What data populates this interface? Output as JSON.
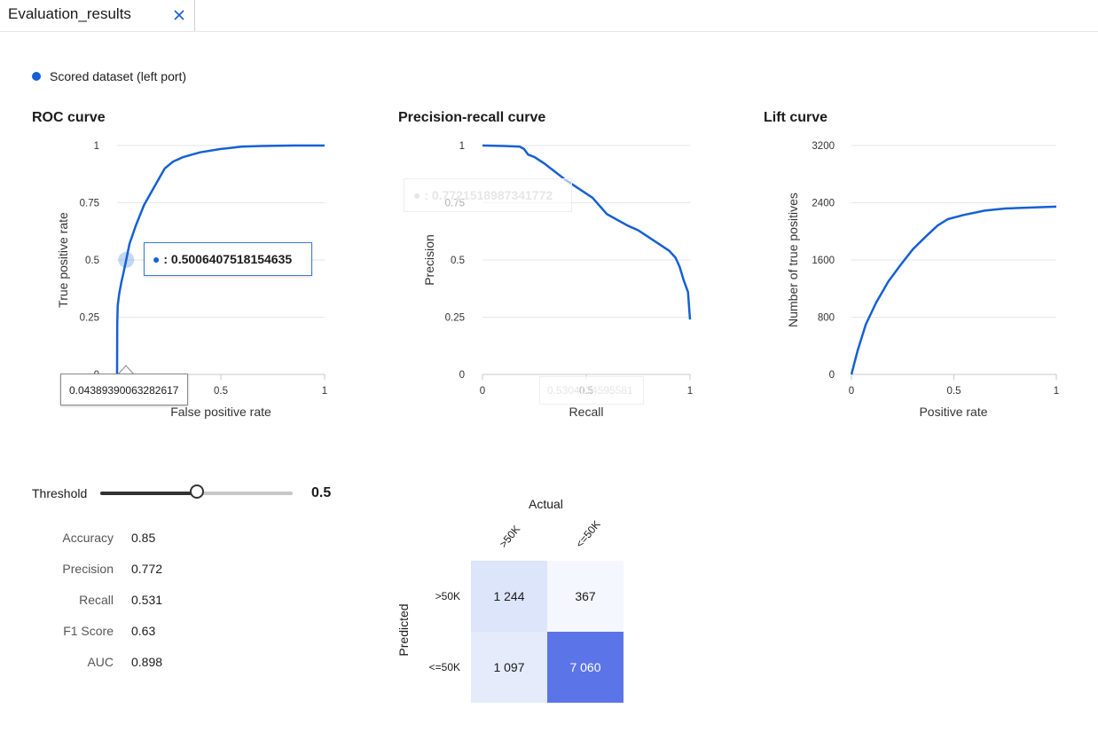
{
  "tab": {
    "title": "Evaluation_results",
    "close_icon": "close-icon"
  },
  "legend": {
    "label": "Scored dataset (left port)",
    "color": "#1560d4"
  },
  "roc": {
    "title": "ROC curve",
    "tooltip_value": ": 0.5006407518154635",
    "x_tooltip_value": "0.04389390063282617"
  },
  "pr": {
    "title": "Precision-recall curve",
    "ghost_tooltip_value": ": 0.7721518987341772",
    "ghost_x_tooltip_value": "0.5304134595581"
  },
  "lift": {
    "title": "Lift curve"
  },
  "chart_data": [
    {
      "type": "line",
      "title": "ROC curve",
      "xlabel": "False positive rate",
      "ylabel": "True positive rate",
      "xlim": [
        0,
        1
      ],
      "ylim": [
        0,
        1
      ],
      "xticks": [
        "0",
        "0.5",
        "1"
      ],
      "yticks": [
        "0",
        "0.25",
        "0.5",
        "0.75",
        "1"
      ],
      "grid": true,
      "series": [
        {
          "color": "#1560d4",
          "x": [
            0,
            0.001,
            0.003,
            0.01,
            0.02,
            0.03,
            0.044,
            0.06,
            0.09,
            0.13,
            0.18,
            0.23,
            0.27,
            0.32,
            0.4,
            0.5,
            0.6,
            0.7,
            0.85,
            1.0
          ],
          "y": [
            0,
            0.22,
            0.3,
            0.35,
            0.4,
            0.44,
            0.5,
            0.57,
            0.65,
            0.74,
            0.82,
            0.9,
            0.93,
            0.95,
            0.97,
            0.985,
            0.995,
            0.998,
            1.0,
            1.0
          ]
        }
      ],
      "highlight": {
        "x": 0.04389390063282617,
        "y": 0.5006407518154635
      }
    },
    {
      "type": "line",
      "title": "Precision-recall curve",
      "xlabel": "Recall",
      "ylabel": "Precision",
      "xlim": [
        0,
        1
      ],
      "ylim": [
        0,
        1
      ],
      "xticks": [
        "0",
        "0.5",
        "1"
      ],
      "yticks": [
        "0",
        "0.25",
        "0.5",
        "0.75",
        "1"
      ],
      "grid": true,
      "series": [
        {
          "color": "#1560d4",
          "x": [
            0,
            0.1,
            0.18,
            0.2,
            0.22,
            0.25,
            0.3,
            0.4,
            0.5,
            0.53,
            0.6,
            0.7,
            0.75,
            0.8,
            0.9,
            0.93,
            0.95,
            0.97,
            0.99,
            1.0
          ],
          "y": [
            1.0,
            0.998,
            0.995,
            0.985,
            0.96,
            0.95,
            0.92,
            0.85,
            0.79,
            0.772,
            0.7,
            0.65,
            0.63,
            0.6,
            0.54,
            0.51,
            0.47,
            0.41,
            0.36,
            0.24
          ]
        }
      ]
    },
    {
      "type": "line",
      "title": "Lift curve",
      "xlabel": "Positive rate",
      "ylabel": "Number of true positives",
      "xlim": [
        0,
        1
      ],
      "ylim": [
        0,
        3200
      ],
      "xticks": [
        "0",
        "0.5",
        "1"
      ],
      "yticks": [
        "0",
        "800",
        "1600",
        "2400",
        "3200"
      ],
      "grid": true,
      "series": [
        {
          "color": "#1560d4",
          "x": [
            0,
            0.03,
            0.07,
            0.12,
            0.18,
            0.24,
            0.3,
            0.36,
            0.42,
            0.47,
            0.55,
            0.65,
            0.75,
            0.85,
            1.0
          ],
          "y": [
            0,
            330,
            700,
            1000,
            1300,
            1530,
            1750,
            1920,
            2080,
            2170,
            2230,
            2290,
            2320,
            2330,
            2345
          ]
        }
      ]
    },
    {
      "type": "heatmap",
      "title": "",
      "xlabel": "Actual",
      "ylabel": "Predicted",
      "categories": [
        ">50K",
        "<=50K"
      ],
      "rows": [
        ">50K",
        "<=50K"
      ],
      "values": [
        [
          1244,
          367
        ],
        [
          1097,
          7060
        ]
      ],
      "labels": [
        [
          "1 244",
          "367"
        ],
        [
          "1 097",
          "7 060"
        ]
      ],
      "colors": [
        [
          "#dde5fb",
          "#f5f7fe"
        ],
        [
          "#e5ebfb",
          "#5b74e8"
        ]
      ]
    }
  ],
  "threshold": {
    "label": "Threshold",
    "value": 0.5,
    "value_text": "0.5"
  },
  "metrics": [
    {
      "name": "Accuracy",
      "value": "0.85"
    },
    {
      "name": "Precision",
      "value": "0.772"
    },
    {
      "name": "Recall",
      "value": "0.531"
    },
    {
      "name": "F1 Score",
      "value": "0.63"
    },
    {
      "name": "AUC",
      "value": "0.898"
    }
  ]
}
